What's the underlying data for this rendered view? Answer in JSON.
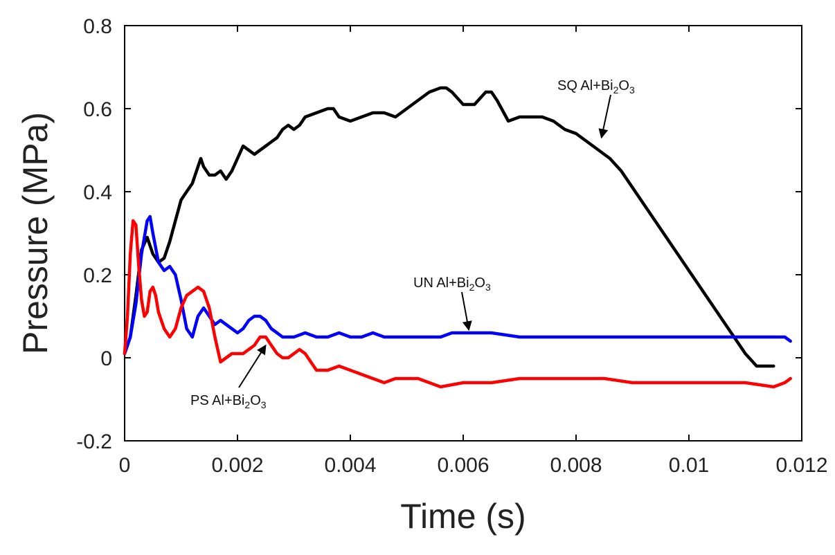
{
  "chart_data": {
    "type": "line",
    "xlabel": "Time (s)",
    "ylabel": "Pressure (MPa)",
    "xlim": [
      0,
      0.012
    ],
    "ylim": [
      -0.2,
      0.8
    ],
    "xticks": [
      0,
      0.002,
      0.004,
      0.006,
      0.008,
      0.01,
      0.012
    ],
    "xtick_labels": [
      "0",
      "0.002",
      "0.004",
      "0.006",
      "0.008",
      "0.01",
      "0.012"
    ],
    "yticks": [
      -0.2,
      0,
      0.2,
      0.4,
      0.6,
      0.8
    ],
    "ytick_labels": [
      "-0.2",
      "0",
      "0.2",
      "0.4",
      "0.6",
      "0.8"
    ],
    "grid": false,
    "series": [
      {
        "name": "SQ Al+Bi2O3",
        "color": "#000000",
        "x": [
          0,
          0.0001,
          0.0002,
          0.0003,
          0.0004,
          0.0005,
          0.0006,
          0.0007,
          0.0008,
          0.0009,
          0.001,
          0.0011,
          0.0012,
          0.0013,
          0.00135,
          0.0014,
          0.0015,
          0.0016,
          0.0017,
          0.0018,
          0.0019,
          0.002,
          0.0021,
          0.0022,
          0.0023,
          0.0024,
          0.0025,
          0.0026,
          0.0027,
          0.0028,
          0.0029,
          0.003,
          0.0031,
          0.0032,
          0.0034,
          0.0036,
          0.0037,
          0.0038,
          0.004,
          0.0042,
          0.0044,
          0.0046,
          0.0048,
          0.005,
          0.0052,
          0.0054,
          0.0056,
          0.0057,
          0.0058,
          0.006,
          0.0062,
          0.0064,
          0.0065,
          0.0066,
          0.0068,
          0.007,
          0.0072,
          0.0074,
          0.0076,
          0.0078,
          0.008,
          0.0082,
          0.0084,
          0.0086,
          0.0088,
          0.009,
          0.0092,
          0.0094,
          0.0096,
          0.0098,
          0.01,
          0.0102,
          0.0104,
          0.0106,
          0.0108,
          0.011,
          0.0112,
          0.0114,
          0.0115
        ],
        "y": [
          0.01,
          0.05,
          0.15,
          0.26,
          0.29,
          0.25,
          0.23,
          0.24,
          0.28,
          0.33,
          0.38,
          0.4,
          0.42,
          0.46,
          0.48,
          0.46,
          0.44,
          0.44,
          0.45,
          0.43,
          0.45,
          0.48,
          0.51,
          0.5,
          0.49,
          0.5,
          0.51,
          0.52,
          0.53,
          0.55,
          0.56,
          0.55,
          0.56,
          0.58,
          0.59,
          0.6,
          0.6,
          0.58,
          0.57,
          0.58,
          0.59,
          0.59,
          0.58,
          0.6,
          0.62,
          0.64,
          0.65,
          0.65,
          0.64,
          0.61,
          0.61,
          0.64,
          0.64,
          0.62,
          0.57,
          0.58,
          0.58,
          0.58,
          0.57,
          0.55,
          0.54,
          0.52,
          0.5,
          0.48,
          0.45,
          0.41,
          0.37,
          0.33,
          0.29,
          0.25,
          0.21,
          0.17,
          0.13,
          0.09,
          0.05,
          0.01,
          -0.02,
          -0.02,
          -0.02
        ]
      },
      {
        "name": "UN Al+Bi2O3",
        "color": "#0000ff",
        "x": [
          0,
          0.0001,
          0.0002,
          0.0003,
          0.0004,
          0.00045,
          0.0005,
          0.0006,
          0.0007,
          0.0008,
          0.0009,
          0.001,
          0.0011,
          0.0012,
          0.0013,
          0.0014,
          0.0015,
          0.0016,
          0.0017,
          0.0018,
          0.0019,
          0.002,
          0.0021,
          0.0022,
          0.0023,
          0.0024,
          0.0025,
          0.0026,
          0.0027,
          0.0028,
          0.003,
          0.0032,
          0.0034,
          0.0036,
          0.0038,
          0.004,
          0.0042,
          0.0044,
          0.0046,
          0.0048,
          0.005,
          0.0052,
          0.0054,
          0.0056,
          0.0058,
          0.006,
          0.0065,
          0.007,
          0.0075,
          0.008,
          0.0085,
          0.009,
          0.0095,
          0.01,
          0.0105,
          0.011,
          0.0113,
          0.0116,
          0.0117,
          0.0118
        ],
        "y": [
          0.01,
          0.05,
          0.13,
          0.25,
          0.33,
          0.34,
          0.3,
          0.23,
          0.21,
          0.22,
          0.2,
          0.14,
          0.07,
          0.05,
          0.1,
          0.12,
          0.1,
          0.08,
          0.09,
          0.08,
          0.07,
          0.06,
          0.07,
          0.09,
          0.1,
          0.1,
          0.09,
          0.07,
          0.06,
          0.05,
          0.05,
          0.06,
          0.05,
          0.05,
          0.06,
          0.05,
          0.05,
          0.06,
          0.05,
          0.05,
          0.05,
          0.05,
          0.05,
          0.05,
          0.06,
          0.06,
          0.06,
          0.05,
          0.05,
          0.05,
          0.05,
          0.05,
          0.05,
          0.05,
          0.05,
          0.05,
          0.05,
          0.05,
          0.05,
          0.04
        ]
      },
      {
        "name": "PS Al+Bi2O3",
        "color": "#ff0000",
        "x": [
          0,
          5e-05,
          0.0001,
          0.00015,
          0.0002,
          0.00025,
          0.0003,
          0.00035,
          0.0004,
          0.00045,
          0.0005,
          0.00055,
          0.0006,
          0.0007,
          0.0008,
          0.0009,
          0.001,
          0.0011,
          0.0012,
          0.0013,
          0.0014,
          0.0015,
          0.0016,
          0.0017,
          0.0018,
          0.0019,
          0.002,
          0.0021,
          0.0022,
          0.0023,
          0.0024,
          0.0025,
          0.0026,
          0.0027,
          0.0028,
          0.0029,
          0.003,
          0.0031,
          0.0032,
          0.0033,
          0.0034,
          0.0036,
          0.0038,
          0.004,
          0.0042,
          0.0044,
          0.0046,
          0.0048,
          0.005,
          0.0052,
          0.0054,
          0.0056,
          0.006,
          0.0065,
          0.007,
          0.0075,
          0.008,
          0.0085,
          0.009,
          0.0095,
          0.01,
          0.0105,
          0.011,
          0.0115,
          0.0117,
          0.0118
        ],
        "y": [
          0.01,
          0.1,
          0.25,
          0.33,
          0.32,
          0.22,
          0.14,
          0.1,
          0.11,
          0.16,
          0.17,
          0.15,
          0.11,
          0.07,
          0.05,
          0.07,
          0.12,
          0.15,
          0.16,
          0.17,
          0.16,
          0.12,
          0.05,
          -0.01,
          0.0,
          0.01,
          0.01,
          0.01,
          0.02,
          0.03,
          0.05,
          0.05,
          0.03,
          0.01,
          0.0,
          0.0,
          0.01,
          0.02,
          0.01,
          -0.01,
          -0.03,
          -0.03,
          -0.02,
          -0.03,
          -0.04,
          -0.05,
          -0.06,
          -0.05,
          -0.05,
          -0.05,
          -0.06,
          -0.07,
          -0.06,
          -0.06,
          -0.05,
          -0.05,
          -0.05,
          -0.05,
          -0.06,
          -0.06,
          -0.06,
          -0.06,
          -0.06,
          -0.07,
          -0.06,
          -0.05
        ]
      }
    ],
    "annotations": [
      {
        "prefix": "SQ Al+Bi",
        "sub1": "2",
        "mid": "O",
        "sub2": "3",
        "target_x": 0.00845,
        "target_y": 0.53
      },
      {
        "prefix": "UN Al+Bi",
        "sub1": "2",
        "mid": "O",
        "sub2": "3",
        "target_x": 0.0061,
        "target_y": 0.067
      },
      {
        "prefix": "PS Al+Bi",
        "sub1": "2",
        "mid": "O",
        "sub2": "3",
        "target_x": 0.0025,
        "target_y": 0.03
      }
    ]
  }
}
